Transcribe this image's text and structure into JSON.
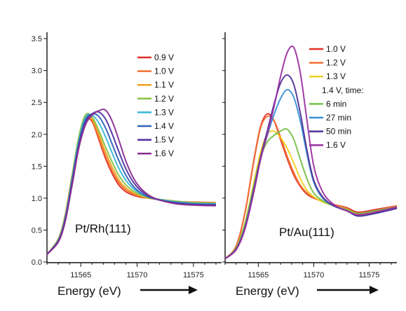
{
  "chart_data": [
    {
      "type": "line",
      "annotation": "Pt/Rh(111)",
      "xlabel": "Energy (eV)",
      "ylabel": "",
      "xlim": [
        11562,
        11577.5
      ],
      "ylim": [
        0,
        3.6
      ],
      "xticks": [
        "11565",
        "11570",
        "11575"
      ],
      "yticks": [
        "0.0",
        "0.5",
        "1.0",
        "1.5",
        "2.0",
        "2.5",
        "3.0",
        "3.5"
      ],
      "legend_position": "top-right",
      "legend": [
        "0.9 V",
        "1.0 V",
        "1.1 V",
        "1.2 V",
        "1.3 V",
        "1.4 V",
        "1.5 V",
        "1.6 V"
      ],
      "x": [
        11562.0,
        11563.0,
        11563.6,
        11564.2,
        11564.8,
        11565.4,
        11566.0,
        11566.6,
        11567.2,
        11567.8,
        11568.4,
        11569.0,
        11569.6,
        11570.2,
        11571.0,
        11572.0,
        11573.5,
        11575.0,
        11577.0
      ],
      "series": [
        {
          "name": "0.9 V",
          "color": "#e03028",
          "values": [
            0.12,
            0.36,
            0.72,
            1.32,
            1.9,
            2.22,
            2.2,
            1.92,
            1.62,
            1.38,
            1.2,
            1.1,
            1.05,
            1.02,
            1.0,
            0.98,
            0.95,
            0.93,
            0.92
          ]
        },
        {
          "name": "1.0 V",
          "color": "#f07030",
          "values": [
            0.12,
            0.36,
            0.72,
            1.32,
            1.9,
            2.22,
            2.21,
            1.95,
            1.66,
            1.42,
            1.24,
            1.13,
            1.07,
            1.03,
            1.0,
            0.98,
            0.95,
            0.94,
            0.93
          ]
        },
        {
          "name": "1.1 V",
          "color": "#f0a020",
          "values": [
            0.12,
            0.36,
            0.72,
            1.32,
            1.92,
            2.26,
            2.24,
            2.0,
            1.72,
            1.48,
            1.28,
            1.16,
            1.09,
            1.04,
            1.0,
            0.98,
            0.95,
            0.93,
            0.92
          ]
        },
        {
          "name": "1.2 V",
          "color": "#88c040",
          "values": [
            0.12,
            0.35,
            0.7,
            1.3,
            1.94,
            2.3,
            2.27,
            2.06,
            1.8,
            1.56,
            1.35,
            1.21,
            1.12,
            1.06,
            1.01,
            0.98,
            0.95,
            0.93,
            0.92
          ]
        },
        {
          "name": "1.3 V",
          "color": "#38b8d8",
          "values": [
            0.12,
            0.34,
            0.68,
            1.27,
            1.88,
            2.26,
            2.3,
            2.18,
            1.96,
            1.7,
            1.46,
            1.28,
            1.16,
            1.08,
            1.02,
            0.98,
            0.94,
            0.92,
            0.91
          ]
        },
        {
          "name": "1.4 V",
          "color": "#3060b8",
          "values": [
            0.12,
            0.33,
            0.66,
            1.24,
            1.84,
            2.22,
            2.32,
            2.28,
            2.1,
            1.84,
            1.58,
            1.36,
            1.2,
            1.1,
            1.02,
            0.97,
            0.93,
            0.91,
            0.9
          ]
        },
        {
          "name": "1.5 V",
          "color": "#5030a0",
          "values": [
            0.12,
            0.32,
            0.64,
            1.2,
            1.8,
            2.18,
            2.32,
            2.35,
            2.24,
            2.0,
            1.72,
            1.46,
            1.27,
            1.14,
            1.04,
            0.97,
            0.92,
            0.9,
            0.89
          ]
        },
        {
          "name": "1.6 V",
          "color": "#8a2c90",
          "values": [
            0.12,
            0.31,
            0.62,
            1.17,
            1.76,
            2.14,
            2.3,
            2.37,
            2.38,
            2.2,
            1.9,
            1.58,
            1.34,
            1.18,
            1.05,
            0.97,
            0.91,
            0.89,
            0.88
          ]
        }
      ]
    },
    {
      "type": "line",
      "annotation": "Pt/Au(111)",
      "xlabel": "Energy (eV)",
      "ylabel": "",
      "xlim": [
        11562,
        11577.5
      ],
      "ylim": [
        0,
        3.6
      ],
      "xticks": [
        "11565",
        "11570",
        "11575"
      ],
      "yticks": [],
      "legend_position": "top-right",
      "legend": [
        "1.0 V",
        "1.2 V",
        "1.3 V",
        "1.4 V, time:",
        "6 min",
        "27 min",
        "50 min",
        "1.6 V"
      ],
      "x": [
        11562.0,
        11563.0,
        11563.8,
        11564.6,
        11565.2,
        11565.8,
        11566.4,
        11567.0,
        11567.6,
        11568.2,
        11568.8,
        11569.4,
        11570.0,
        11570.8,
        11571.8,
        11573.0,
        11574.0,
        11575.5,
        11577.5
      ],
      "series": [
        {
          "name": "1.0 V",
          "color": "#e03028",
          "values": [
            0.05,
            0.25,
            0.78,
            1.6,
            2.12,
            2.32,
            2.22,
            1.92,
            1.62,
            1.36,
            1.18,
            1.06,
            1.0,
            0.95,
            0.9,
            0.85,
            0.78,
            0.82,
            0.88
          ]
        },
        {
          "name": "1.2 V",
          "color": "#f07030",
          "values": [
            0.05,
            0.25,
            0.78,
            1.58,
            2.1,
            2.28,
            2.22,
            1.96,
            1.66,
            1.4,
            1.2,
            1.08,
            1.01,
            0.95,
            0.9,
            0.84,
            0.76,
            0.8,
            0.88
          ]
        },
        {
          "name": "1.3 V",
          "color": "#f0d020",
          "values": [
            0.05,
            0.22,
            0.62,
            1.25,
            1.72,
            2.0,
            2.05,
            1.95,
            1.78,
            1.55,
            1.3,
            1.12,
            1.02,
            0.94,
            0.88,
            0.82,
            0.74,
            0.78,
            0.85
          ]
        },
        {
          "name": "6 min",
          "color": "#78c048",
          "values": [
            0.05,
            0.22,
            0.6,
            1.2,
            1.64,
            1.88,
            1.98,
            2.05,
            2.08,
            1.92,
            1.6,
            1.3,
            1.08,
            0.96,
            0.88,
            0.82,
            0.76,
            0.8,
            0.86
          ]
        },
        {
          "name": "27 min",
          "color": "#3890d8",
          "values": [
            0.05,
            0.2,
            0.55,
            1.15,
            1.62,
            1.98,
            2.3,
            2.56,
            2.7,
            2.58,
            2.2,
            1.68,
            1.25,
            1.0,
            0.88,
            0.8,
            0.72,
            0.76,
            0.84
          ]
        },
        {
          "name": "50 min",
          "color": "#503098",
          "values": [
            0.05,
            0.2,
            0.54,
            1.14,
            1.64,
            2.05,
            2.46,
            2.8,
            2.93,
            2.78,
            2.32,
            1.74,
            1.28,
            1.02,
            0.88,
            0.8,
            0.72,
            0.76,
            0.84
          ]
        },
        {
          "name": "1.6 V",
          "color": "#9a30a0",
          "values": [
            0.05,
            0.19,
            0.52,
            1.1,
            1.6,
            2.0,
            2.42,
            2.9,
            3.28,
            3.36,
            2.95,
            2.2,
            1.5,
            1.1,
            0.9,
            0.8,
            0.74,
            0.78,
            0.86
          ]
        }
      ]
    }
  ]
}
